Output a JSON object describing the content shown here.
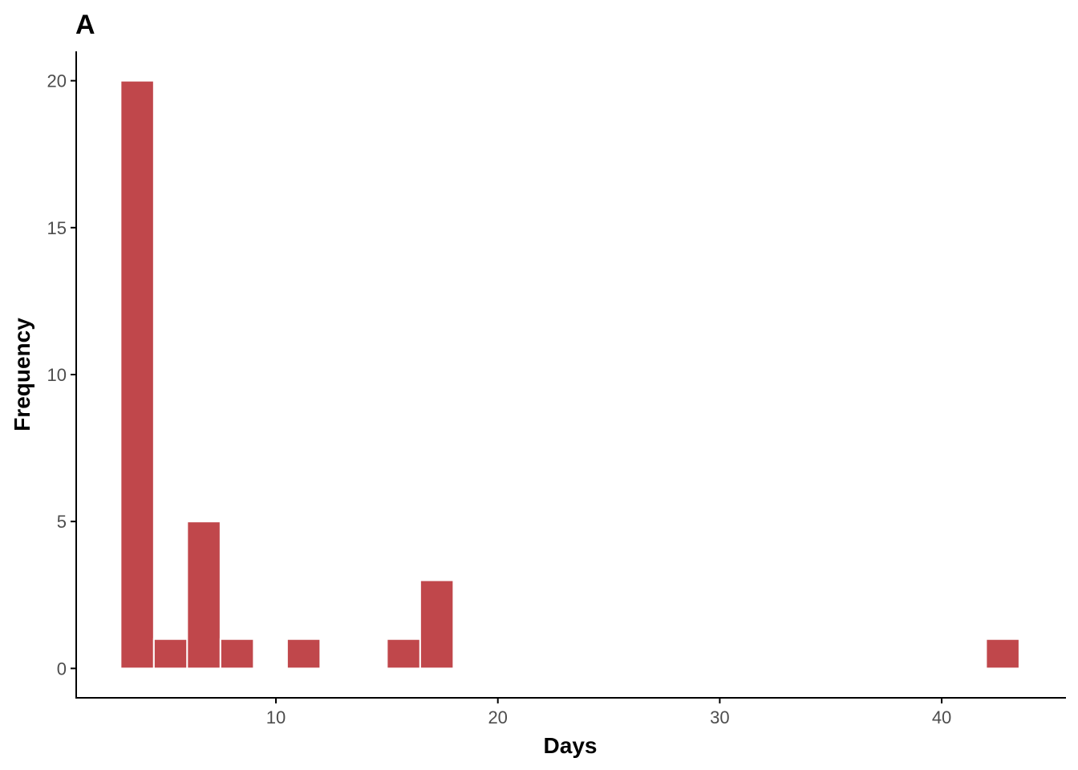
{
  "chart_data": {
    "type": "bar",
    "panel_tag": "A",
    "title": "",
    "xlabel": "Days",
    "ylabel": "Frequency",
    "xlim": [
      1,
      45.6
    ],
    "ylim": [
      -1,
      21
    ],
    "x_ticks": [
      10,
      20,
      30,
      40
    ],
    "x_tick_labels": [
      "10",
      "20",
      "30",
      "40"
    ],
    "y_ticks": [
      0,
      5,
      10,
      15,
      20
    ],
    "y_tick_labels": [
      "0",
      "5",
      "10",
      "15",
      "20"
    ],
    "bin_width": 1.5,
    "bins": [
      {
        "start": 3.0,
        "end": 4.5,
        "count": 20
      },
      {
        "start": 4.5,
        "end": 6.0,
        "count": 1
      },
      {
        "start": 6.0,
        "end": 7.5,
        "count": 5
      },
      {
        "start": 7.5,
        "end": 9.0,
        "count": 1
      },
      {
        "start": 10.5,
        "end": 12.0,
        "count": 1
      },
      {
        "start": 15.0,
        "end": 16.5,
        "count": 1
      },
      {
        "start": 16.5,
        "end": 18.0,
        "count": 3
      },
      {
        "start": 42.0,
        "end": 43.5,
        "count": 1
      }
    ],
    "grid": false,
    "legend": "none",
    "colors": {
      "bar_fill": "#c0474b",
      "bar_outline": "#ffffff",
      "axis_line": "#000000",
      "tick_text": "#4d4d4d"
    }
  }
}
